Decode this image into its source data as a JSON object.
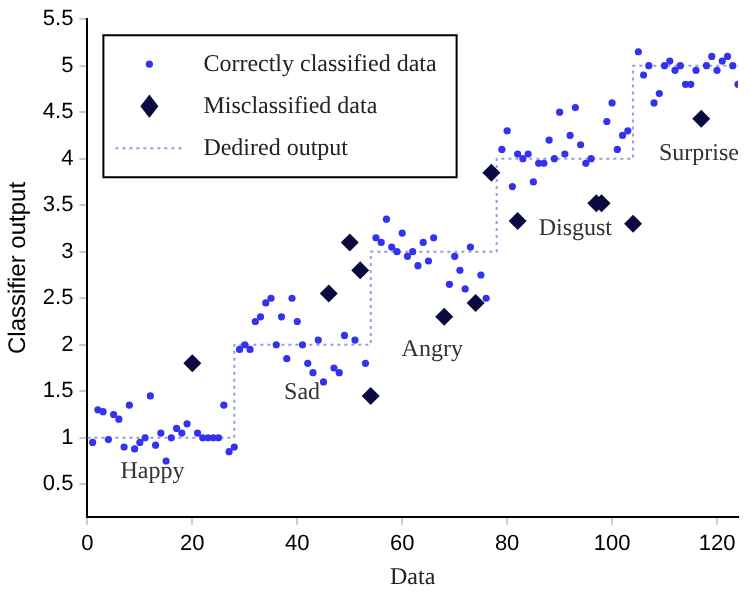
{
  "chart_data": {
    "type": "scatter",
    "xlabel": "Data",
    "ylabel": "Classifier output",
    "xlim": [
      0,
      124
    ],
    "xticks": [
      0,
      20,
      40,
      60,
      80,
      100,
      120
    ],
    "ylim": [
      0.15,
      5.5
    ],
    "yticks": [
      0.5,
      1,
      1.5,
      2,
      2.5,
      3,
      3.5,
      4,
      4.5,
      5,
      5.5
    ],
    "grid": false,
    "legend": "top left",
    "series": [
      {
        "name": "Correctly classified data",
        "type": "scatter",
        "marker": "circle",
        "color": "#3333ee",
        "x": [
          1,
          2,
          3,
          4,
          5,
          6,
          7,
          8,
          9,
          10,
          11,
          12,
          13,
          14,
          15,
          16,
          17,
          18,
          19,
          21,
          22,
          23,
          24,
          25,
          26,
          27,
          28,
          29,
          30,
          31,
          32,
          33,
          34,
          35,
          36,
          37,
          38,
          39,
          40,
          41,
          42,
          43,
          44,
          45,
          47,
          48,
          49,
          51,
          53,
          55,
          56,
          57,
          58,
          59,
          60,
          61,
          62,
          63,
          64,
          65,
          66,
          69,
          70,
          71,
          72,
          73,
          75,
          76,
          79,
          80,
          81,
          82,
          83,
          84,
          85,
          86,
          87,
          88,
          89,
          90,
          91,
          92,
          93,
          94,
          95,
          96,
          99,
          100,
          101,
          102,
          103,
          105,
          106,
          107,
          108,
          109,
          110,
          111,
          112,
          113,
          114,
          115,
          116,
          118,
          119,
          120,
          121,
          122,
          123,
          124
        ],
        "values": [
          0.95,
          1.3,
          1.28,
          0.98,
          1.25,
          1.2,
          0.9,
          1.35,
          0.88,
          0.95,
          1.0,
          1.45,
          0.92,
          1.05,
          0.75,
          1.0,
          1.1,
          1.05,
          1.15,
          1.05,
          1.0,
          1.0,
          1.0,
          1.0,
          1.35,
          0.85,
          0.9,
          1.95,
          2.0,
          1.95,
          2.25,
          2.3,
          2.45,
          2.5,
          2.0,
          2.3,
          1.85,
          2.5,
          2.25,
          2.0,
          1.8,
          1.7,
          2.05,
          1.6,
          1.75,
          1.7,
          2.1,
          2.05,
          1.8,
          3.15,
          3.1,
          3.35,
          3.05,
          3.0,
          3.2,
          2.95,
          3.0,
          2.85,
          3.1,
          2.9,
          3.15,
          2.65,
          2.95,
          2.8,
          2.6,
          3.05,
          2.75,
          2.5,
          4.1,
          4.3,
          3.7,
          4.05,
          4.0,
          4.05,
          3.75,
          3.95,
          3.95,
          4.2,
          4.0,
          4.5,
          4.05,
          4.25,
          4.55,
          4.15,
          3.95,
          4.0,
          4.4,
          4.6,
          4.1,
          4.25,
          4.3,
          5.15,
          4.9,
          5.0,
          4.6,
          4.7,
          5.0,
          5.05,
          4.95,
          5.0,
          4.8,
          4.8,
          4.95,
          5.0,
          5.1,
          4.95,
          5.05,
          5.1,
          5.0,
          4.8
        ]
      },
      {
        "name": "Misclassified data",
        "type": "scatter",
        "marker": "diamond",
        "color": "#0a0a40",
        "x": [
          20,
          46,
          50,
          52,
          54,
          68,
          74,
          77,
          82,
          97,
          98,
          104,
          117
        ],
        "values": [
          1.8,
          2.55,
          3.1,
          2.8,
          1.45,
          2.3,
          2.45,
          3.85,
          3.33,
          3.52,
          3.52,
          3.3,
          4.43
        ]
      },
      {
        "name": "Dedired output",
        "type": "line",
        "marker": "none",
        "line_style": "dotted",
        "color": "#9999dd",
        "x": [
          0,
          28,
          28,
          54,
          54,
          78,
          78,
          104,
          104,
          124
        ],
        "values": [
          1,
          1,
          2,
          2,
          3,
          3,
          4,
          4,
          5,
          5
        ]
      }
    ],
    "annotations": [
      "Happy",
      "Sad",
      "Angry",
      "Disgust",
      "Surprise"
    ]
  }
}
